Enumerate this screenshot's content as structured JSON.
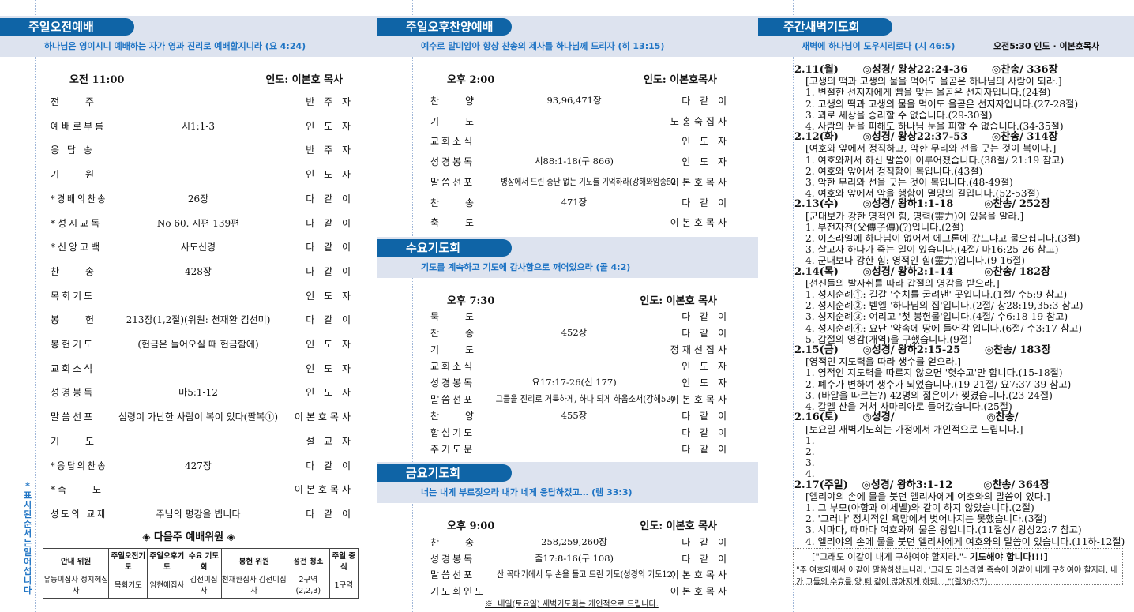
{
  "sunday_am": {
    "title": "주일오전예배",
    "verse": "하나님은 영이시니 예배하는 자가 영과 진리로 예배할지니라 (요 4:24)",
    "time": "오전 11:00",
    "leader": "인도: 이본호 목사",
    "rows": [
      [
        "전　　주",
        "",
        "반 주 자"
      ],
      [
        "예배로부름",
        "시1:1-3",
        "인 도 자"
      ],
      [
        "응 답 송",
        "",
        "반 주 자"
      ],
      [
        "기　　원",
        "",
        "인 도 자"
      ],
      [
        "*경배의찬송",
        "26장",
        "다 같 이"
      ],
      [
        "*성시교독",
        "No 60. 시편 139편",
        "다 같 이"
      ],
      [
        "*신앙고백",
        "사도신경",
        "다 같 이"
      ],
      [
        "찬　　송",
        "428장",
        "다 같 이"
      ],
      [
        "목회기도",
        "",
        "인 도 자"
      ],
      [
        "봉　　헌",
        "213장(1,2절)(위원: 천재환 김선미)",
        "다 같 이"
      ],
      [
        "봉헌기도",
        "(헌금은 들어오실 때 헌금함에)",
        "인 도 자"
      ],
      [
        "교회소식",
        "",
        "인 도 자"
      ],
      [
        "성경봉독",
        "마5:1-12",
        "인 도 자"
      ],
      [
        "말씀선포",
        "심령이 가난한 사람이 복이 있다(팔복①)",
        "이본호목사"
      ],
      [
        "기　　도",
        "",
        "설 교 자"
      ],
      [
        "*응답의찬송",
        "427장",
        "다 같 이"
      ],
      [
        "*축　　도",
        "",
        "이본호목사"
      ],
      [
        "성도의 교제",
        "주님의 평강을 빕니다",
        "다 같 이"
      ]
    ],
    "standing_note": "*표시된 순서는 일어섭니다",
    "next_week": {
      "title": "◈ 다음주 예배위원 ◈",
      "headers": [
        "안내 위원",
        "주일오전기도",
        "주일오후기도",
        "수요 기도회",
        "봉헌 위원",
        "성전 청소",
        "주일 중식"
      ],
      "cells": [
        "유동미집사 정지혜집사",
        "목회기도",
        "임현애집사",
        "김선미집사",
        "천재환집사 김선미집사",
        "2구역(2,2,3)",
        "1구역"
      ]
    }
  },
  "sunday_pm": {
    "title": "주일오후찬양예배",
    "verse": "예수로 말미암아 항상 찬송의 제사를 하나님께 드리자 (히 13:15)",
    "time": "오후 2:00",
    "leader": "인도: 이본호목사",
    "rows": [
      [
        "찬　　양",
        "93,96,471장",
        "다 같 이"
      ],
      [
        "기　　도",
        "",
        "노홍숙집사"
      ],
      [
        "교회소식",
        "",
        "인 도 자"
      ],
      [
        "성경봉독",
        "시88:1-18(구 866)",
        "인 도 자"
      ],
      [
        "말씀선포",
        "병상에서 드린 중단 없는 기도를 기억하라(강해와암송52)",
        "이본호목사"
      ],
      [
        "찬　　송",
        "471장",
        "다 같 이"
      ],
      [
        "축　　도",
        "",
        "이본호목사"
      ]
    ]
  },
  "wednesday": {
    "title": "수요기도회",
    "verse": "기도를 계속하고 기도에 감사함으로 깨어있으라 (골 4:2)",
    "time": "오후 7:30",
    "leader": "인도: 이본호 목사",
    "rows": [
      [
        "묵　　도",
        "",
        "다 같 이"
      ],
      [
        "찬　　송",
        "452장",
        "다 같 이"
      ],
      [
        "기　　도",
        "",
        "정재선집사"
      ],
      [
        "교회소식",
        "",
        "인 도 자"
      ],
      [
        "성경봉독",
        "요17:17-26(신 177)",
        "인 도 자"
      ],
      [
        "말씀선포",
        "그들을 진리로 거룩하게, 하나 되게 하옵소서(강해52)",
        "이본호목사"
      ],
      [
        "찬　　양",
        "455장",
        "다 같 이"
      ],
      [
        "합심기도",
        "",
        "다 같 이"
      ],
      [
        "주기도문",
        "",
        "다 같 이"
      ]
    ]
  },
  "friday": {
    "title": "금요기도회",
    "verse": "너는 내게 부르짖으라 내가 네게 응답하겠고… (렘 33:3)",
    "time": "오후 9:00",
    "leader": "인도: 이본호 목사",
    "rows": [
      [
        "찬　　송",
        "258,259,260장",
        "다 같 이"
      ],
      [
        "성경봉독",
        "출17:8-16(구 108)",
        "다 같 이"
      ],
      [
        "말씀선포",
        "산 꼭대기에서 두 손을 들고 드린 기도(성경의 기도12)",
        "이본호목사"
      ],
      [
        "기도회인도",
        "",
        "이본호목사"
      ]
    ],
    "note": "※. 내일(토요일) 새벽기도회는 개인적으로 드립니다."
  },
  "dawn": {
    "title": "주간새벽기도회",
    "verse": "새벽에 하나님이 도우시리로다 (시 46:5)",
    "leader": "오전5:30 인도 · 이본호목사",
    "days": [
      {
        "head": "2.11(월)　　 ◎성경/ 왕상22:24-36　　 ◎찬송/ 336장",
        "sub": "[고생의 떡과 고생의 물을 먹어도 올곧은 하나님의 사람이 되라.]",
        "items": [
          "1. 변절한 선지자에게 빰을 맞는 올곧은 선지자입니다.(24절)",
          "2. 고생의 떡과 고생의 물을 먹어도 올곧은 선지자입니다.(27-28절)",
          "3. 꾀로 세상을 승리할 수 없습니다.(29-30절)",
          "4. 사람의 눈을 피해도 하나님 눈을 피할 수 없습니다.(34-35절)"
        ]
      },
      {
        "head": "2.12(화)　　 ◎성경/ 왕상22:37-53　　 ◎찬송/ 314장",
        "sub": "[여호와 앞에서 정직하고, 악한 무리와 선을 긋는 것이 복이다.]",
        "items": [
          "1. 여호와께서 하신 말씀이 이루어졌습니다.(38절/ 21:19 참고)",
          "2. 여호와 앞에서 정직함이 복입니다.(43절)",
          "3. 악한 무리와 선을 긋는 것이 복입니다.(48-49절)",
          "4. 여호와 앞에서 악을 행함이 멸망의 길입니다.(52-53절)"
        ]
      },
      {
        "head": "2.13(수)　　 ◎성경/ 왕하1:1-18　　　◎찬송/ 252장",
        "sub": "[군대보가 강한 영적인 힘, 영력(靈力)이 있음을 알라.]",
        "items": [
          "1. 부전자전(父傳子傳)(?)입니다.(2절)",
          "2. 이스라엘에 하나님이 없어서 에그론에 갔느냐고 물으십니다.(3절)",
          "3. 살고자 하다가 죽는 일이 있습니다.(4절/ 마16:25-26 참고)",
          "4. 군대보다 강한 힘: 영적인 힘(靈力)입니다.(9-16절)"
        ]
      },
      {
        "head": "2.14(목)　　 ◎성경/ 왕하2:1-14　　　◎찬송/ 182장",
        "sub": "[선진들의 발자취를 따라 갑절의 영감을 받으라.]",
        "items": [
          "1. 성지순례①: 길갈-'수치를 굴려낸' 곳입니다.(1절/ 수5:9 참고)",
          "2. 성지순례②: 벧엘-'하나님의 집'입니다.(2절/ 창28:19,35:3 참고)",
          "3. 성지순례③: 여리고-'첫 봉헌물'입니다.(4절/ 수6:18-19 참고)",
          "4. 성지순례④: 요단-'약속에 땅에 들어감'입니다.(6절/ 수3:17 참고)",
          "5. 갑절의 영감(개역)을 구했습니다.(9절)"
        ]
      },
      {
        "head": "2.15(금)　　 ◎성경/ 왕하2:15-25　　 ◎찬송/ 183장",
        "sub": "[영적인 지도력을 따라 생수를 얻으라.]",
        "items": [
          "1. 영적인 지도력을 따르지 않으면 '헛수고'만 합니다.(15-18절)",
          "2. 폐수가 변하여 생수가 되었습니다.(19-21절/ 요7:37-39 참고)",
          "3. (바알을 따르는?) 42명의 젊은이가 찢겼습니다.(23-24절)",
          "4. 갈멜 산을 거쳐 사마리아로 들어갔습니다.(25절)"
        ]
      },
      {
        "head": "2.16(토)　　 ◎성경/　　　　　　　　　◎찬송/",
        "sub": "[토요일 새벽기도회는 가정에서 개인적으로 드립니다.]",
        "items": [
          "1.",
          "2.",
          "3.",
          "4."
        ]
      },
      {
        "head": "2.17(주일)　 ◎성경/ 왕하3:1-12　　　◎찬송/ 364장",
        "sub": "[엘리야의 손에 물을 붓던 엘리사에게 여호와의 말씀이 있다.]",
        "items": [
          "1. 그 부모(아합과 이세벨)와 같이 하지 않았습니다.(2절)",
          "2. '그러나' 정치적인 욕망에서 벗어나지는 못했습니다.(3절)",
          "3. 시마다, 때마다 여호와께 물은 왕입니다.(11절상/ 왕상22:7 참고)",
          "4. 엘리야의 손에 물을 붓던 엘리사에게 여호와의 말씀이 있습니다.(11하-12절)"
        ]
      }
    ],
    "box": {
      "title": "[\"그래도 이같이 내게 구하여야 할지라.\"- ",
      "title_bold": "기도해야 합니다!!!]",
      "text": "\"주 여호와께서 이같이 말씀하셨느니라. '그래도 이스라엘 족속이 이같이 내게 구하여야 할지라. 내가 그들의 수효를 양 떼 같이 많아지게 하되…,\"(겔36:37)"
    }
  },
  "colors": {
    "pill": "#0f64a6",
    "band": "#dde3ef",
    "verse": "#1f74c4"
  }
}
